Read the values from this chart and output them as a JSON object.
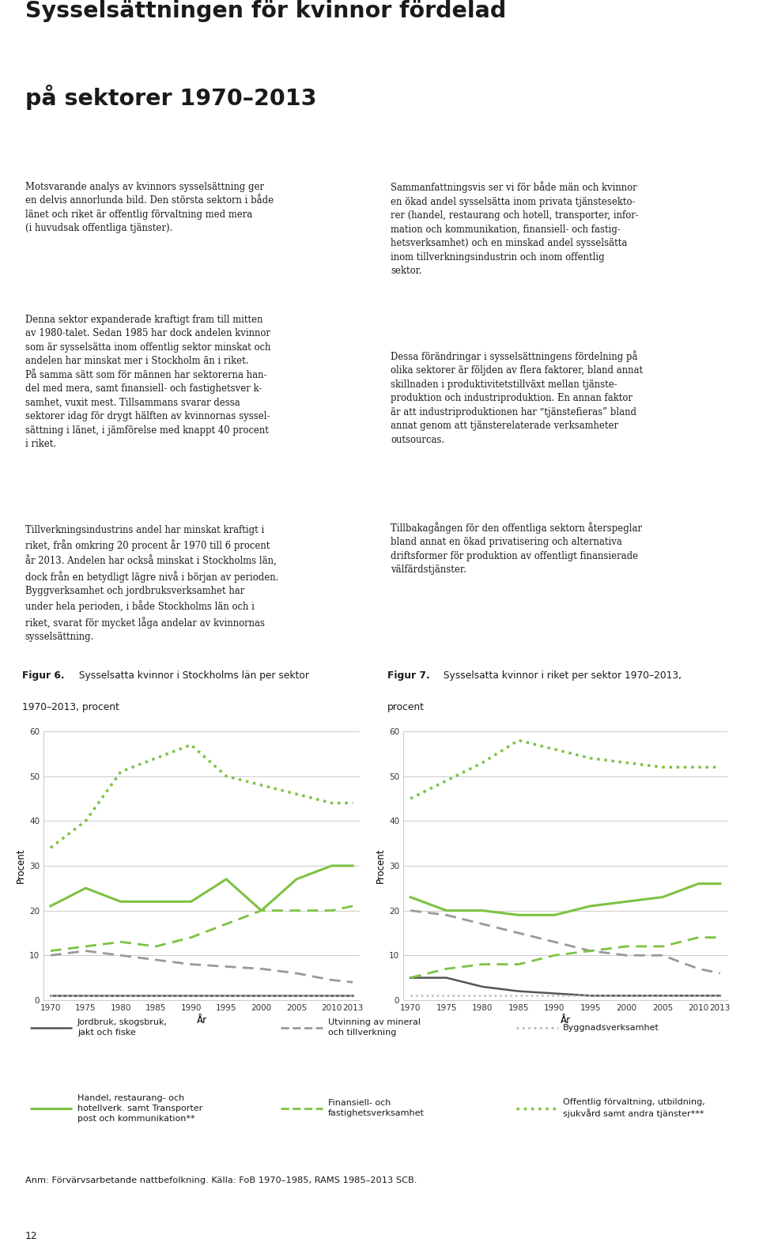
{
  "years": [
    1970,
    1975,
    1980,
    1985,
    1990,
    1995,
    2000,
    2005,
    2010,
    2013
  ],
  "fig6_title_bold": "Figur 6.",
  "fig6_title_rest": " Sysselsatta kvinnor i Stockholms län per sektor",
  "fig6_title2": "1970–2013, procent",
  "fig7_title_bold": "Figur 7.",
  "fig7_title_rest": " Sysselsatta kvinnor i riket per sektor 1970–2013,",
  "fig7_title2": "procent",
  "fig6": {
    "jordbruk": [
      1,
      1,
      1,
      1,
      1,
      1,
      1,
      1,
      1,
      1
    ],
    "handel": [
      21,
      25,
      22,
      22,
      22,
      27,
      20,
      27,
      30,
      30
    ],
    "utvinning": [
      10,
      11,
      10,
      9,
      8,
      7.5,
      7,
      6,
      4.5,
      4
    ],
    "finansiell": [
      11,
      12,
      13,
      12,
      14,
      17,
      20,
      20,
      20,
      21
    ],
    "byggnads": [
      1,
      1,
      1,
      1,
      1,
      1,
      1,
      1,
      1,
      1
    ],
    "offentlig": [
      34,
      40,
      51,
      54,
      57,
      50,
      48,
      46,
      44,
      44
    ]
  },
  "fig7": {
    "jordbruk": [
      5,
      5,
      3,
      2,
      1.5,
      1,
      1,
      1,
      1,
      1
    ],
    "handel": [
      23,
      20,
      20,
      19,
      19,
      21,
      22,
      23,
      26,
      26
    ],
    "utvinning": [
      20,
      19,
      17,
      15,
      13,
      11,
      10,
      10,
      7,
      6
    ],
    "finansiell": [
      5,
      7,
      8,
      8,
      10,
      11,
      12,
      12,
      14,
      14
    ],
    "byggnads": [
      1,
      1,
      1,
      1,
      1,
      1,
      1,
      1,
      1,
      1
    ],
    "offentlig": [
      45,
      49,
      53,
      58,
      56,
      54,
      53,
      52,
      52,
      52
    ]
  },
  "main_title_line1": "Sysselsättningen för kvinnor fördelad",
  "main_title_line2": "på sektorer 1970–2013",
  "ylabel": "Procent",
  "xlabel": "År",
  "ylim": [
    0,
    60
  ],
  "yticks": [
    0,
    10,
    20,
    30,
    40,
    50,
    60
  ],
  "color_dark": "#555555",
  "color_green": "#7dc242",
  "color_gray": "#999999",
  "color_ltgray": "#bbbbbb",
  "legend_items": [
    {
      "label": "Jordbruk, skogsbruk,\njakt och fiske",
      "color": "#555555",
      "ls": "solid",
      "lw": 1.8
    },
    {
      "label": "Utvinning av mineral\noch tillverkning",
      "color": "#999999",
      "ls": "dashed",
      "lw": 2.0
    },
    {
      "label": "Byggnadsverksamhet",
      "color": "#bbbbbb",
      "ls": "dotted",
      "lw": 2.0
    },
    {
      "label": "Handel, restaurang- och\nhotellverk. samt Transporter\npost och kommunikation**",
      "color": "#7dc242",
      "ls": "solid",
      "lw": 2.2
    },
    {
      "label": "Finansiell- och\nfastighetsverksamhet",
      "color": "#7dc242",
      "ls": "dashed",
      "lw": 2.0
    },
    {
      "label": "Offentlig förvaltning, utbildning,\nsjukvård samt andra tjänster***",
      "color": "#7dc242",
      "ls": "dotted",
      "lw": 2.5
    }
  ],
  "left_text_para1": "Motsvarande analys av kvinnors sysselsättning ger\nen delvis annorlunda bild. Den största sektorn i både\nlänet och riket är offentlig förvaltning med mera\n(i huvudsak offentliga tjänster).",
  "left_text_para2": "Denna sektor expanderade kraftigt fram till mitten\nav 1980-talet. Sedan 1985 har dock andelen kvinnor\nsom är sysselsätta inom offentlig sektor minskat och\nandelen har minskat mer i Stockholm än i riket.\nPå samma sätt som för männen har sektorerna han-\ndel med mera, samt finansiell- och fastighetsver k-\nsamhet, vuxit mest. Tillsammans svarar dessa\nsektorer idag för drygt hälften av kvinnornas syssel-\nsättning i länet, i jämförelse med knappt 40 procent\ni riket.",
  "left_text_para3": "Tillverkningsindustrins andel har minskat kraftigt i\nriket, från omkring 20 procent år 1970 till 6 procent\når 2013. Andelen har också minskat i Stockholms län,\ndock från en betydligt lägre nivå i början av perioden.\nByggverksamhet och jordbruksverksamhet har\nunder hela perioden, i både Stockholms län och i\nriket, svarat för mycket låga andelar av kvinnornas\nsysselsättning.",
  "right_text_para1": "Sammanfattningsvis ser vi för både män och kvinnor\nen ökad andel sysselsätta inom privata tjänstesekto-\nrer (handel, restaurang och hotell, transporter, infor-\nmation och kommunikation, finansiell- och fastig-\nhetsverksamhet) och en minskad andel sysselsätta\ninom tillverkningsindustrin och inom offentlig\nsektor.",
  "right_text_para2": "Dessa förändringar i sysselsättningens fördelning på\nolika sektorer är följden av flera faktorer, bland annat\nskillnaden i produktivitetstillväxt mellan tjänste-\nproduktion och industriproduktion. En annan faktor\när att industriproduktionen har “tjänstefieras” bland\nannat genom att tjänsterelaterade verksamheter\noutsourcas.",
  "right_text_para3": "Tillbakagången för den offentliga sektorn återspeglar\nbland annat en ökad privatisering och alternativa\ndriftsformer för produktion av offentligt finansierade\nvälfärdstjänster.",
  "anm_text": "Anm: Förvärvsarbetande nattbefolkning. Källa: FoB 1970–1985, RAMS 1985–2013 SCB.",
  "page_number": "12",
  "background_color": "#ffffff",
  "text_color": "#1a1a1a",
  "grid_color": "#cccccc"
}
